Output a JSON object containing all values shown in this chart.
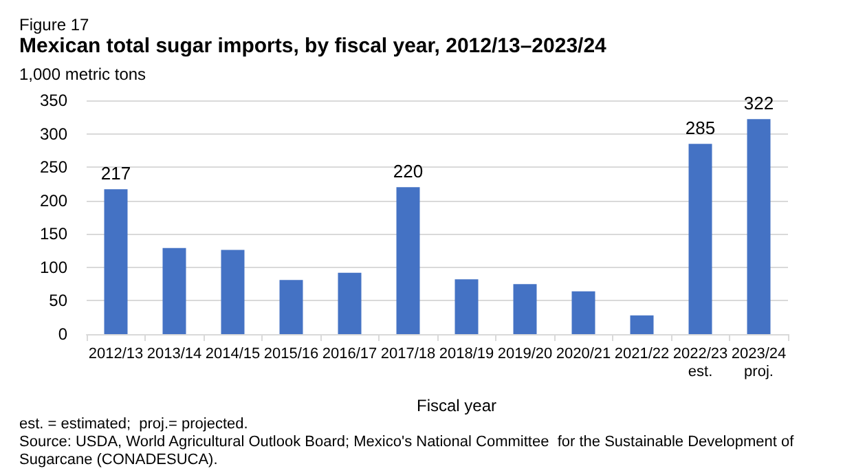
{
  "chart_data": {
    "type": "bar",
    "title": "Mexican total sugar imports, by fiscal year, 2012/13–2023/24",
    "ylabel": "1,000 metric tons",
    "xlabel": "Fiscal year",
    "annotations": [
      "Figure 17",
      "est. = estimated;  proj.= projected.",
      "Source: USDA, World Agricultural Outlook Board; Mexico's National Committee  for the Sustainable Development of Sugarcane (CONADESUCA)."
    ],
    "categories": [
      "2012/13",
      "2013/14",
      "2014/15",
      "2015/16",
      "2016/17",
      "2017/18",
      "2018/19",
      "2019/20",
      "2020/21",
      "2021/22",
      "2022/23\nest.",
      "2023/24\nproj."
    ],
    "values": [
      217,
      129,
      126,
      81,
      92,
      220,
      82,
      75,
      64,
      28,
      285,
      322
    ],
    "value_labels": [
      "217",
      null,
      null,
      null,
      null,
      "220",
      null,
      null,
      null,
      null,
      "285",
      "322"
    ],
    "color": "#4472c4",
    "ylim": [
      0,
      350
    ],
    "yticks": [
      0,
      50,
      100,
      150,
      200,
      250,
      300,
      350
    ],
    "grid": "y"
  }
}
